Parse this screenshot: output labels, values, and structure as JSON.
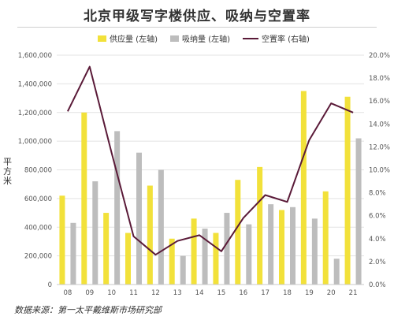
{
  "title": "北京甲级写字楼供应、吸纳与空置率",
  "source": "数据来源：第一太平戴维斯市场研究部",
  "colors": {
    "supply": "#f2e13a",
    "absorption": "#bdbdbd",
    "vacancy": "#5a1a38",
    "grid": "#e3e3e3"
  },
  "chart_data": {
    "type": "bar",
    "title": "北京甲级写字楼供应、吸纳与空置率",
    "categories": [
      "08",
      "09",
      "10",
      "11",
      "12",
      "13",
      "14",
      "15",
      "16",
      "17",
      "18",
      "19",
      "20",
      "21"
    ],
    "ylabel": "平方米",
    "ylim": [
      0,
      1600000
    ],
    "y_ticks": [
      "0",
      "200,000",
      "400,000",
      "600,000",
      "800,000",
      "1,000,000",
      "1,200,000",
      "1,400,000",
      "1,600,000"
    ],
    "y2lim": [
      0,
      0.2
    ],
    "y2_ticks": [
      "0.0%",
      "2.0%",
      "4.0%",
      "6.0%",
      "8.0%",
      "10.0%",
      "12.0%",
      "14.0%",
      "16.0%",
      "18.0%",
      "20.0%"
    ],
    "grid": true,
    "legend": "top",
    "series": [
      {
        "name": "供应量 (左轴)",
        "type": "bar",
        "axis": "left",
        "values": [
          620000,
          1200000,
          500000,
          360000,
          690000,
          320000,
          460000,
          360000,
          730000,
          820000,
          520000,
          1350000,
          650000,
          1310000
        ]
      },
      {
        "name": "吸纳量 (左轴)",
        "type": "bar",
        "axis": "left",
        "values": [
          430000,
          720000,
          1070000,
          920000,
          800000,
          200000,
          390000,
          500000,
          420000,
          560000,
          540000,
          460000,
          180000,
          1020000
        ]
      },
      {
        "name": "空置率 (右轴)",
        "type": "line",
        "axis": "right",
        "values": [
          0.151,
          0.19,
          0.115,
          0.042,
          0.026,
          0.038,
          0.043,
          0.029,
          0.058,
          0.078,
          0.072,
          0.126,
          0.158,
          0.15
        ]
      }
    ]
  }
}
